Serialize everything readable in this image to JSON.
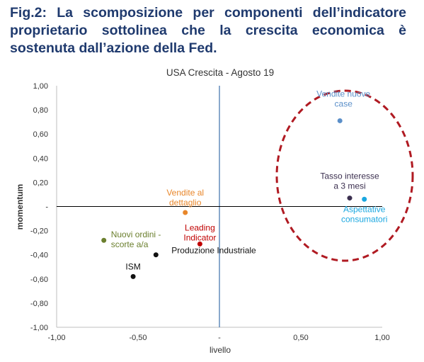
{
  "heading": "Fig.2: La scomposizione per componenti dell’indicatore proprietario sottolinea che la crescita economica è sostenuta dall’azione della Fed.",
  "chart_data": {
    "type": "scatter",
    "title": "USA Crescita - Agosto 19",
    "xlabel": "livello",
    "ylabel": "momentum",
    "xlim": [
      -1.0,
      1.0
    ],
    "ylim": [
      -1.0,
      1.0
    ],
    "x_ticks": [
      -1.0,
      -0.5,
      0,
      0.5,
      1.0
    ],
    "x_tick_labels": [
      "-1,00",
      "-0,50",
      "-",
      "0,50",
      "1,00"
    ],
    "y_ticks": [
      1.0,
      0.8,
      0.6,
      0.4,
      0.2,
      0,
      -0.2,
      -0.4,
      -0.6,
      -0.8,
      -1.0
    ],
    "y_tick_labels": [
      "1,00",
      "0,80",
      "0,60",
      "0,40",
      "0,20",
      "-",
      "-0,20",
      "-0,40",
      "-0,60",
      "-0,80",
      "-1,00"
    ],
    "grid": false,
    "points": [
      {
        "label": [
          "Vendite nuove",
          "case"
        ],
        "x": 0.74,
        "y": 0.71,
        "color": "#5b8fc9"
      },
      {
        "label": [
          "Tasso interesse",
          "a 3 mesi"
        ],
        "x": 0.8,
        "y": 0.07,
        "color": "#3b2f4f"
      },
      {
        "label": [
          "Aspettative",
          "consumatori"
        ],
        "x": 0.89,
        "y": 0.06,
        "color": "#1aa7e0"
      },
      {
        "label": [
          "Vendite al",
          "dettaglio"
        ],
        "x": -0.21,
        "y": -0.05,
        "color": "#e8862a"
      },
      {
        "label": [
          "Leading",
          "Indicator"
        ],
        "x": -0.12,
        "y": -0.31,
        "color": "#c00000"
      },
      {
        "label": [
          "Nuovi ordini -",
          "scorte a/a"
        ],
        "x": -0.71,
        "y": -0.28,
        "color": "#6b7f2e"
      },
      {
        "label": [
          "Produzione Industriale"
        ],
        "x": -0.39,
        "y": -0.4,
        "color": "#111111"
      },
      {
        "label": [
          "ISM"
        ],
        "x": -0.53,
        "y": -0.58,
        "color": "#111111"
      }
    ],
    "annotation_color": "#b01a22"
  }
}
